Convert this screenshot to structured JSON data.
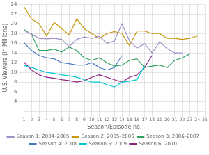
{
  "chart_data": {
    "type": "line",
    "xlabel": "Season/Episode no.",
    "ylabel": "U.S. Viewers (In Millions)",
    "x": [
      1,
      2,
      3,
      4,
      5,
      6,
      7,
      8,
      9,
      10,
      11,
      12,
      13,
      14,
      15,
      16,
      17,
      18,
      19,
      20,
      21,
      22,
      23,
      24,
      25
    ],
    "series": [
      {
        "name": "Season 1: 2004–2005",
        "color": "#a090c8",
        "values": [
          18.6,
          17.9,
          17.0,
          16.9,
          17.0,
          16.8,
          15.3,
          16.8,
          17.3,
          17.0,
          17.4,
          16.0,
          16.5,
          20.0,
          16.5,
          15.0,
          15.9,
          14.0,
          16.3,
          14.9,
          14.0,
          14.0,
          null,
          null,
          null
        ]
      },
      {
        "name": "Season 2: 2005–2006",
        "color": "#c8960a",
        "values": [
          23.5,
          21.0,
          20.0,
          17.5,
          20.3,
          19.0,
          17.7,
          21.0,
          19.0,
          18.0,
          17.0,
          18.0,
          18.4,
          18.0,
          15.5,
          18.5,
          18.5,
          18.0,
          18.0,
          17.0,
          17.0,
          16.8,
          17.0,
          17.5,
          null
        ]
      },
      {
        "name": "Season 3: 2006–2007",
        "color": "#30a060",
        "values": [
          18.8,
          17.8,
          14.5,
          14.5,
          14.8,
          14.2,
          15.2,
          14.5,
          13.0,
          12.5,
          13.0,
          12.0,
          11.3,
          11.5,
          12.5,
          12.8,
          11.0,
          11.3,
          11.5,
          11.0,
          12.5,
          13.0,
          13.8,
          null,
          null
        ]
      },
      {
        "name": "Season 4: 2008",
        "color": "#4878c0",
        "values": [
          16.1,
          14.5,
          13.5,
          13.0,
          12.8,
          12.0,
          11.8,
          11.5,
          11.5,
          12.0,
          11.0,
          10.5,
          11.0,
          13.5,
          null,
          null,
          null,
          null,
          null,
          null,
          null,
          null,
          null,
          null,
          null
        ]
      },
      {
        "name": "Season 5: 2009",
        "color": "#00c8d0",
        "values": [
          11.4,
          11.0,
          10.5,
          10.0,
          9.8,
          9.5,
          9.3,
          9.0,
          8.5,
          8.0,
          8.0,
          7.5,
          7.0,
          8.0,
          8.2,
          8.5,
          11.4,
          null,
          null,
          null,
          null,
          null,
          null,
          null,
          null
        ]
      },
      {
        "name": "Season 6: 2010",
        "color": "#8b2080",
        "values": [
          12.1,
          10.5,
          9.5,
          9.0,
          8.8,
          8.5,
          8.3,
          8.0,
          8.3,
          9.0,
          9.5,
          9.0,
          8.5,
          8.0,
          9.0,
          9.5,
          11.0,
          13.5,
          null,
          null,
          null,
          null,
          null,
          null,
          null
        ]
      }
    ],
    "xlim": [
      1,
      25
    ],
    "xticks": [
      1,
      2,
      3,
      4,
      5,
      6,
      7,
      8,
      9,
      10,
      11,
      12,
      13,
      14,
      15,
      16,
      17,
      18,
      19,
      20,
      21,
      22,
      23,
      24,
      25
    ],
    "ylim": [
      2,
      24
    ],
    "yticks": [
      4,
      6,
      8,
      10,
      12,
      14,
      16,
      18,
      20,
      22,
      24
    ],
    "grid": true,
    "legend": "bottom"
  }
}
